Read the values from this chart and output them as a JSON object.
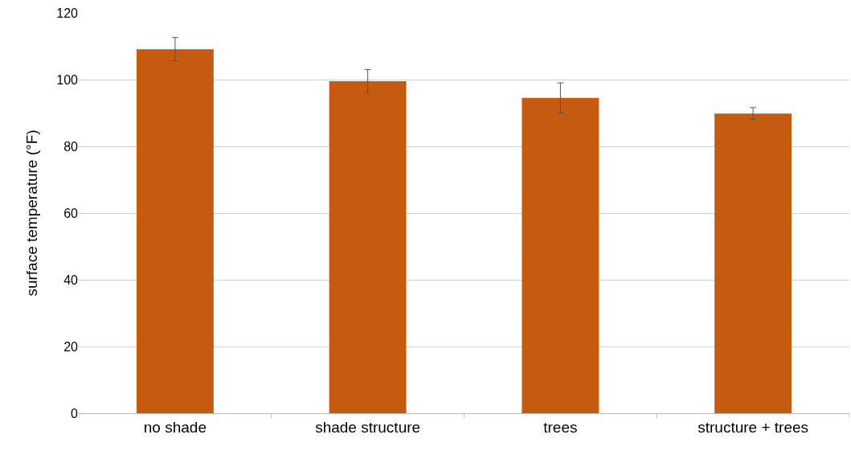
{
  "chart_data": {
    "type": "bar",
    "ylabel": "surface temperature (°F)",
    "categories": [
      "no shade",
      "shade structure",
      "trees",
      "structure + trees"
    ],
    "values": [
      109.1,
      99.5,
      94.5,
      89.8
    ],
    "errors": [
      3.5,
      3.5,
      4.5,
      1.8
    ],
    "color": "#c55a11",
    "ylim": [
      0,
      120
    ],
    "yticks": [
      0,
      20,
      40,
      60,
      80,
      100,
      120
    ],
    "grid": "y",
    "legend": false
  }
}
